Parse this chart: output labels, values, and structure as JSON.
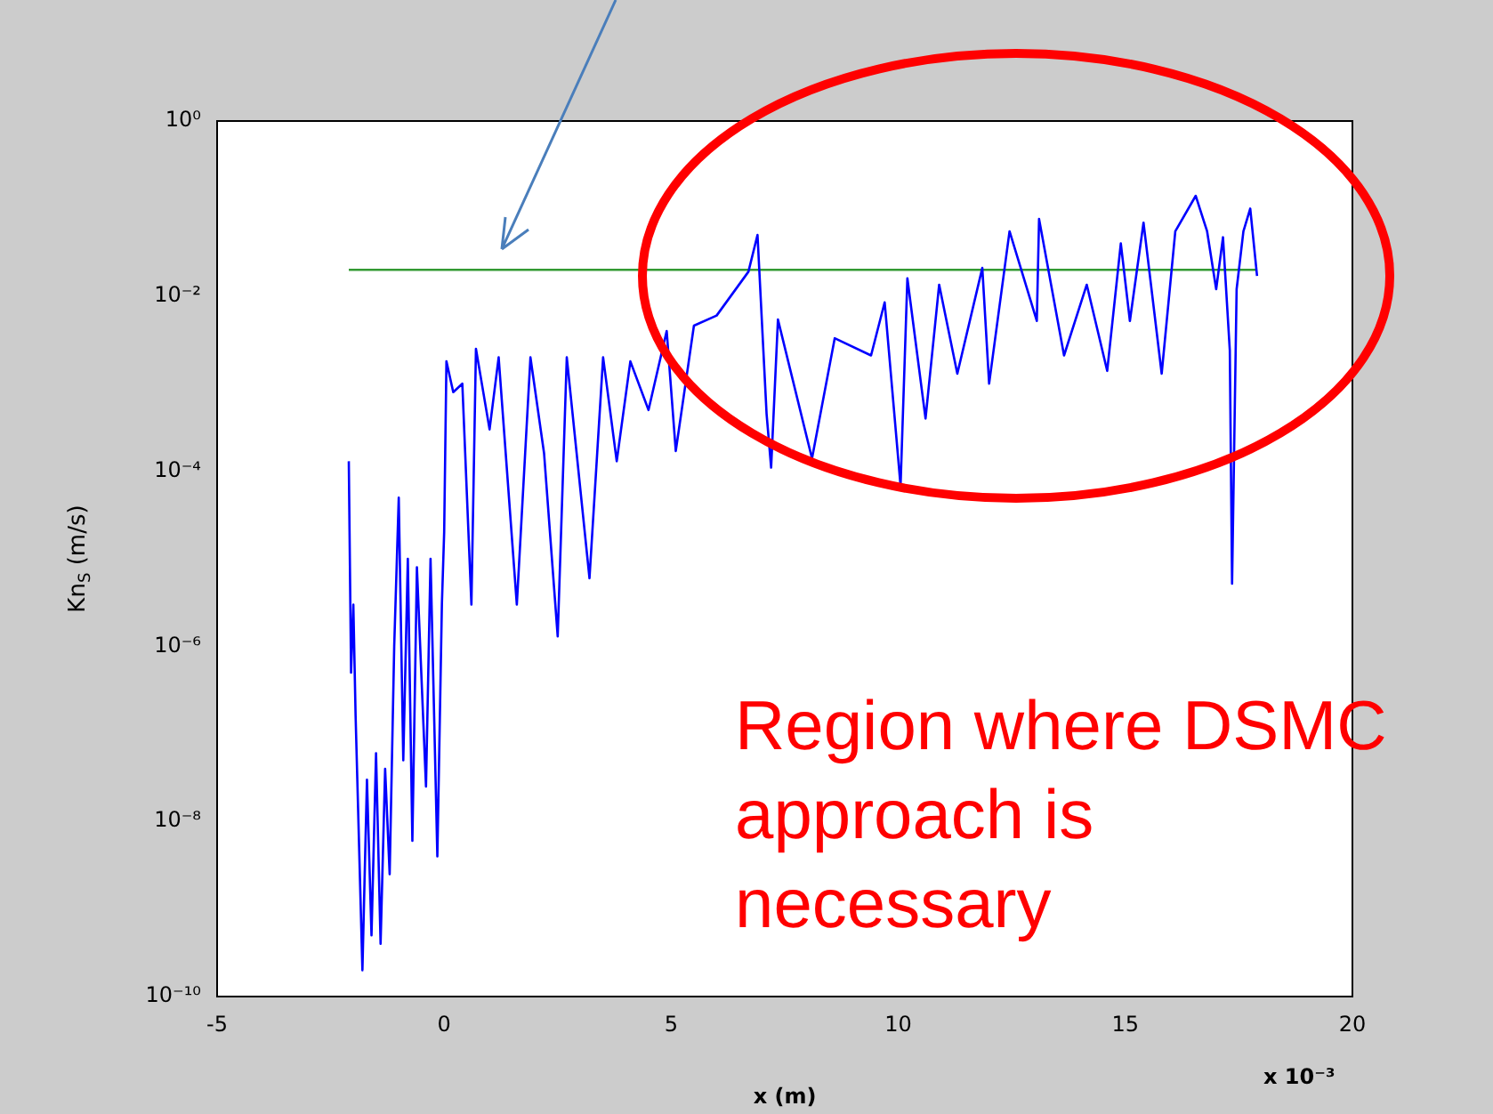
{
  "chart_data": {
    "type": "line",
    "xlabel": "x (m)",
    "ylabel": "Kn$_{S}$ (m/s)",
    "log": "y",
    "xlim": [
      -5,
      20
    ],
    "xticks": [
      -5,
      0,
      5,
      10,
      15,
      20
    ],
    "ylim": [
      1e-10,
      1
    ],
    "yticks": [
      {
        "value": 1e-10,
        "label": "10⁻¹⁰"
      },
      {
        "value": 1e-08,
        "label": "10⁻⁸"
      },
      {
        "value": 1e-06,
        "label": "10⁻⁶"
      },
      {
        "value": 0.0001,
        "label": "10⁻⁴"
      },
      {
        "value": 0.01,
        "label": "10⁻²"
      },
      {
        "value": 1,
        "label": "10⁰"
      }
    ],
    "grid": false,
    "legend": false,
    "marker": "none",
    "line_style": "solid",
    "series": [
      {
        "color": "#0000ff",
        "x": [
          -2.1,
          -2.05,
          -2.0,
          -1.95,
          -1.8,
          -1.7,
          -1.6,
          -1.5,
          -1.4,
          -1.3,
          -1.2,
          -1.1,
          -1.0,
          -0.9,
          -0.8,
          -0.7,
          -0.6,
          -0.4,
          -0.3,
          -0.15,
          -0.05,
          0.0,
          0.05,
          0.2,
          0.4,
          0.6,
          0.7,
          1.0,
          1.2,
          1.6,
          1.9,
          2.2,
          2.5,
          2.7,
          3.2,
          3.5,
          3.8,
          4.1,
          4.5,
          4.9,
          5.1,
          5.5,
          6.0,
          6.7,
          6.9,
          7.1,
          7.2,
          7.35,
          8.1,
          8.6,
          9.4,
          9.7,
          10.05,
          10.2,
          10.6,
          10.9,
          11.3,
          11.85,
          12.0,
          12.45,
          13.05,
          13.1,
          13.65,
          14.15,
          14.6,
          14.9,
          15.1,
          15.4,
          15.8,
          16.1,
          16.55,
          16.8,
          17.0,
          17.15,
          17.3,
          17.35,
          17.45,
          17.6,
          17.75,
          17.9
        ],
        "values": [
          0.00013,
          5e-07,
          3e-06,
          1.6e-07,
          2e-10,
          3e-08,
          5e-10,
          6e-08,
          4e-10,
          4e-08,
          2.5e-09,
          1e-06,
          5e-05,
          5e-08,
          1e-05,
          6e-09,
          8e-06,
          2.5e-08,
          1e-05,
          4e-09,
          3e-06,
          2e-05,
          0.0018,
          0.0008,
          0.001,
          3e-06,
          0.0025,
          0.0003,
          0.002,
          3e-06,
          0.002,
          0.00016,
          1.3e-06,
          0.002,
          6e-06,
          0.002,
          0.00013,
          0.0018,
          0.0005,
          0.004,
          0.00017,
          0.0046,
          0.006,
          0.019,
          0.05,
          0.00045,
          0.00011,
          0.0054,
          0.00014,
          0.0033,
          0.0021,
          0.0085,
          6.8e-05,
          0.016,
          0.0004,
          0.0135,
          0.0013,
          0.021,
          0.001,
          0.055,
          0.0052,
          0.076,
          0.0021,
          0.0135,
          0.0014,
          0.04,
          0.0052,
          0.069,
          0.0013,
          0.055,
          0.14,
          0.055,
          0.012,
          0.047,
          0.0024,
          5.2e-06,
          0.012,
          0.055,
          0.1,
          0.017
        ]
      },
      {
        "color": "#339933",
        "x": [
          -2.1,
          17.9
        ],
        "values": [
          0.02,
          0.02
        ]
      }
    ],
    "annotations": [
      "Region where DSMC approach is necessary",
      "x 10⁻³"
    ]
  }
}
